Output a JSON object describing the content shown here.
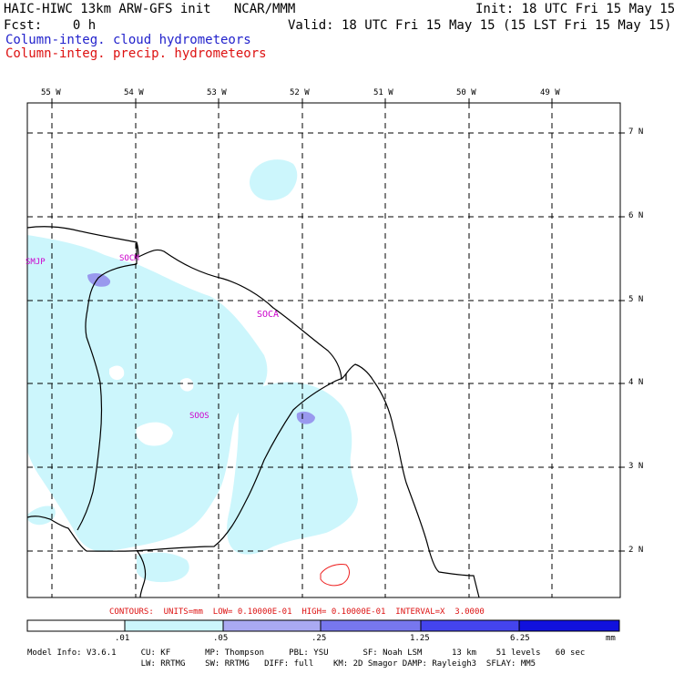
{
  "header": {
    "title": "HAIC-HIWC 13km ARW-GFS init   NCAR/MMM",
    "init": "Init: 18 UTC Fri 15 May 15",
    "fcst": "Fcst:    0 h",
    "valid": "Valid: 18 UTC Fri 15 May 15 (15 LST Fri 15 May 15)",
    "field_cloud": "Column-integ. cloud hydrometeors",
    "field_precip": "Column-integ. precip. hydrometeors"
  },
  "map": {
    "lon_labels": [
      "55 W",
      "54 W",
      "53 W",
      "52 W",
      "51 W",
      "50 W",
      "49 W"
    ],
    "lat_labels": [
      "7 N",
      "6 N",
      "5 N",
      "4 N",
      "3 N",
      "2 N"
    ],
    "stations": [
      "SMJP",
      "SOCM",
      "SOCA",
      "SOOS"
    ],
    "colors": {
      "cloud_light": "#ccf6fc",
      "cloud_medium": "#9999ee",
      "precip_contour": "#ee2222",
      "station_label": "#cc00cc"
    }
  },
  "contour_info": "CONTOURS:  UNITS=mm  LOW= 0.10000E-01  HIGH= 0.10000E-01  INTERVAL=X  3.0000",
  "colorbar": {
    "labels": [
      ".01",
      ".05",
      ".25",
      "1.25",
      "6.25"
    ],
    "unit": "mm",
    "colors": [
      "#ffffff",
      "#ccf6fc",
      "#aaaaf2",
      "#7777ee",
      "#4444ee",
      "#1111dd"
    ]
  },
  "footer": {
    "line1": "Model Info: V3.6.1     CU: KF       MP: Thompson     PBL: YSU       SF: Noah LSM      13 km    51 levels   60 sec",
    "line2": "                       LW: RRTMG    SW: RRTMG   DIFF: full    KM: 2D Smagor DAMP: Rayleigh3  SFLAY: MM5"
  }
}
